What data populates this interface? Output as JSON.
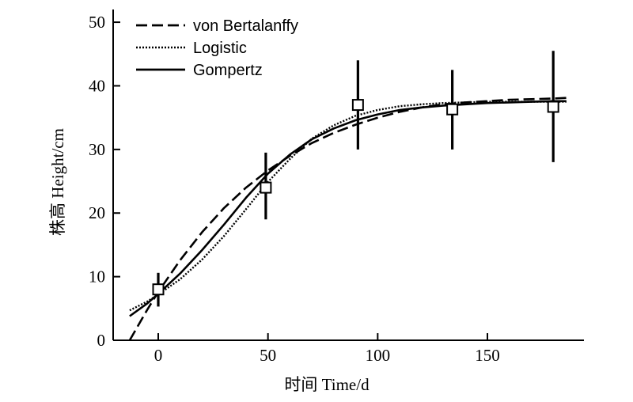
{
  "chart_data": {
    "type": "scatter",
    "xlabel": "时间 Time/d",
    "ylabel": "株高 Height/cm",
    "xlim": [
      -25,
      195
    ],
    "ylim": [
      0,
      52
    ],
    "xticks": [
      0,
      50,
      100,
      150
    ],
    "yticks": [
      0,
      10,
      20,
      30,
      40,
      50
    ],
    "grid": false,
    "legend_position": "top-left",
    "observations": [
      {
        "x": 0,
        "y": 8.0,
        "err_low": 5.3,
        "err_high": 10.6
      },
      {
        "x": 49,
        "y": 24.0,
        "err_low": 19.0,
        "err_high": 29.5
      },
      {
        "x": 91,
        "y": 37.0,
        "err_low": 30.0,
        "err_high": 44.0
      },
      {
        "x": 134,
        "y": 36.3,
        "err_low": 30.0,
        "err_high": 42.5
      },
      {
        "x": 180,
        "y": 36.7,
        "err_low": 28.0,
        "err_high": 45.5
      }
    ],
    "series": [
      {
        "name": "von Bertalanffy",
        "style": "dashed",
        "x": [
          -13,
          -5,
          0,
          10,
          20,
          30,
          40,
          50,
          60,
          70,
          80,
          90,
          100,
          110,
          120,
          130,
          140,
          150,
          160,
          170,
          180,
          186
        ],
        "values": [
          0,
          4.8,
          7.6,
          12.6,
          17.0,
          20.8,
          24.0,
          26.7,
          29.0,
          31.0,
          32.6,
          33.9,
          35.0,
          35.9,
          36.6,
          37.1,
          37.4,
          37.6,
          37.8,
          37.9,
          38.0,
          38.1
        ]
      },
      {
        "name": "Logistic",
        "style": "dotted",
        "x": [
          -13,
          -5,
          0,
          10,
          20,
          30,
          40,
          50,
          60,
          70,
          80,
          90,
          100,
          110,
          120,
          130,
          140,
          150,
          160,
          170,
          180,
          186
        ],
        "values": [
          4.7,
          6.1,
          7.2,
          9.6,
          12.7,
          16.4,
          20.6,
          24.9,
          28.5,
          31.7,
          33.8,
          35.3,
          36.2,
          36.8,
          37.1,
          37.3,
          37.4,
          37.5,
          37.5,
          37.5,
          37.5,
          37.5
        ]
      },
      {
        "name": "Gompertz",
        "style": "solid",
        "x": [
          -13,
          -5,
          0,
          10,
          20,
          30,
          40,
          50,
          60,
          70,
          80,
          90,
          100,
          110,
          120,
          130,
          140,
          150,
          160,
          170,
          180,
          186
        ],
        "values": [
          3.8,
          5.8,
          7.3,
          10.5,
          14.2,
          18.2,
          22.4,
          26.2,
          29.2,
          31.6,
          33.3,
          34.6,
          35.5,
          36.2,
          36.6,
          36.9,
          37.1,
          37.3,
          37.4,
          37.5,
          37.6,
          37.6
        ]
      }
    ]
  }
}
